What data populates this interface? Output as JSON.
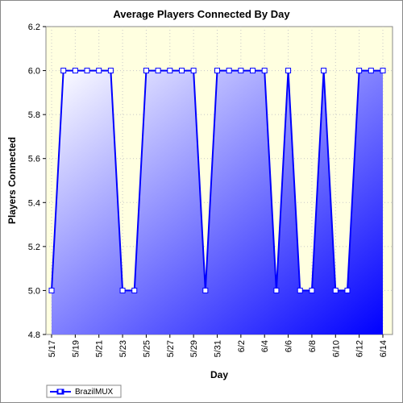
{
  "chart_data": {
    "type": "area",
    "title": "Average Players Connected By Day",
    "xlabel": "Day",
    "ylabel": "Players Connected",
    "ylim": [
      4.8,
      6.2
    ],
    "yticks": [
      "4.8",
      "5.0",
      "5.2",
      "5.4",
      "5.6",
      "5.8",
      "6.0",
      "6.2"
    ],
    "xticks": [
      "5/17",
      "5/19",
      "5/21",
      "5/23",
      "5/25",
      "5/27",
      "5/29",
      "5/31",
      "6/2",
      "6/4",
      "6/6",
      "6/8",
      "6/10",
      "6/12",
      "6/14"
    ],
    "grid": true,
    "legend_position": "bottom-left",
    "plot_background": "#ffffe0",
    "series": [
      {
        "name": "BrazilMUX",
        "color": "#0000ff",
        "x": [
          "5/17",
          "5/18",
          "5/19",
          "5/20",
          "5/21",
          "5/22",
          "5/23",
          "5/24",
          "5/25",
          "5/26",
          "5/27",
          "5/28",
          "5/29",
          "5/30",
          "5/31",
          "6/1",
          "6/2",
          "6/3",
          "6/4",
          "6/5",
          "6/6",
          "6/7",
          "6/8",
          "6/9",
          "6/10",
          "6/11",
          "6/12",
          "6/13",
          "6/14"
        ],
        "values": [
          5.0,
          6.0,
          6.0,
          6.0,
          6.0,
          6.0,
          5.0,
          5.0,
          6.0,
          6.0,
          6.0,
          6.0,
          6.0,
          5.0,
          6.0,
          6.0,
          6.0,
          6.0,
          6.0,
          5.0,
          6.0,
          5.0,
          5.0,
          6.0,
          5.0,
          5.0,
          6.0,
          6.0,
          6.0
        ]
      }
    ]
  }
}
